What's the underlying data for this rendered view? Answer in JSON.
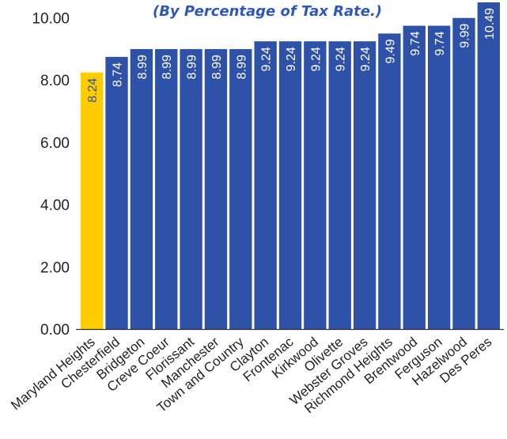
{
  "chart_data": {
    "type": "bar",
    "subtitle": "(By Percentage of Tax Rate.)",
    "categories": [
      "Maryland Heights",
      "Chesterfield",
      "Bridgeton",
      "Creve Coeur",
      "Florissant",
      "Manchester",
      "Town and Country",
      "Clayton",
      "Frontenac",
      "Kirkwood",
      "Olivette",
      "Webster Groves",
      "Richmond Heights",
      "Brentwood",
      "Ferguson",
      "Hazelwood",
      "Des Peres"
    ],
    "values": [
      8.24,
      8.74,
      8.99,
      8.99,
      8.99,
      8.99,
      8.99,
      9.24,
      9.24,
      9.24,
      9.24,
      9.24,
      9.49,
      9.74,
      9.74,
      9.99,
      10.49
    ],
    "value_labels": [
      "8.24",
      "8.74",
      "8.99",
      "8.99",
      "8.99",
      "8.99",
      "8.99",
      "9.24",
      "9.24",
      "9.24",
      "9.24",
      "9.24",
      "9.49",
      "9.74",
      "9.74",
      "9.99",
      "10.49"
    ],
    "yticks": [
      "0.00",
      "2.00",
      "4.00",
      "6.00",
      "8.00",
      "10.00"
    ],
    "ylim": [
      0,
      10.49
    ],
    "xlabel": "",
    "ylabel": "",
    "grid": false,
    "legend": "none",
    "colors": {
      "default_bar": "#2e52a8",
      "highlight_bar": "#ffcc00",
      "highlight_label": "#2e52a8",
      "default_label": "#ffffff",
      "subtitle": "#2f57b7",
      "axis": "#333333"
    },
    "highlight_index": 0
  }
}
